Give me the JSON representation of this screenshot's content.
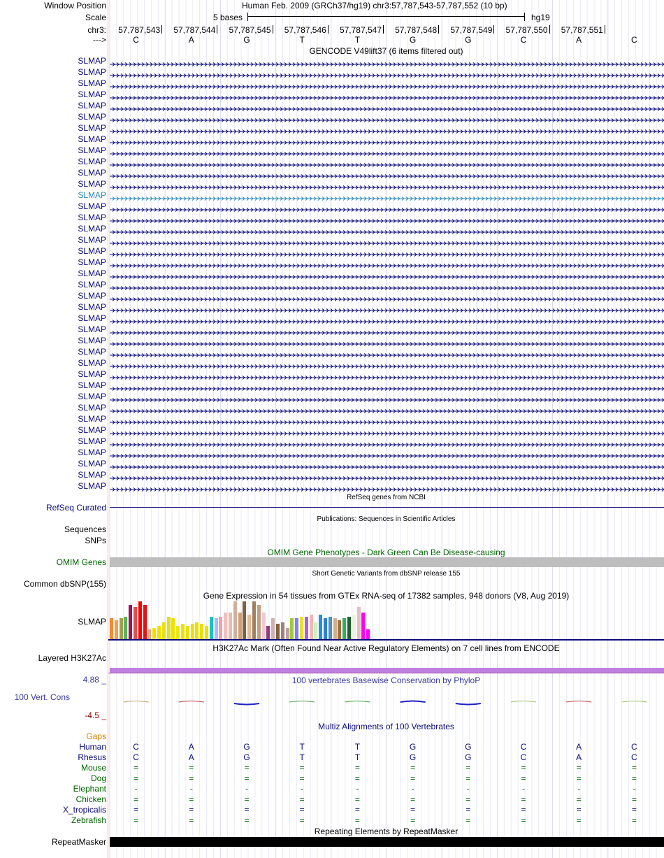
{
  "header": {
    "window_position_label": "Window Position",
    "scale_label": "Scale",
    "chrom_label": "chr3:",
    "strand_label": "--->",
    "window_text": "Human Feb. 2009 (GRCh37/hg19)   chr3:57,787,543-57,787,552 (10 bp)",
    "scale_text": "5 bases",
    "assembly": "hg19",
    "coordinates": [
      "57,787,543",
      "57,787,544",
      "57,787,545",
      "57,787,546",
      "57,787,547",
      "57,787,548",
      "57,787,549",
      "57,787,550",
      "57,787,551"
    ],
    "bases": [
      "C",
      "A",
      "G",
      "T",
      "T",
      "G",
      "G",
      "C",
      "A",
      "C"
    ]
  },
  "gencode": {
    "title": "GENCODE V49lift37 (6 items filtered out)",
    "gene_name": "SLMAP",
    "row_count": 39,
    "highlight_row": 12,
    "color": "#0c0c78",
    "highlight_color": "#2a8ab8"
  },
  "refseq": {
    "label": "RefSeq Curated",
    "title": "RefSeq genes from NCBI"
  },
  "pubs": {
    "label_line1": "Sequences",
    "label_line2": "SNPs",
    "title": "Publications: Sequences in Scientific Articles"
  },
  "omim": {
    "label": "OMIM Genes",
    "title": "OMIM Gene Phenotypes - Dark Green Can Be Disease-causing",
    "color": "#006400"
  },
  "dbsnp": {
    "label": "Common dbSNP(155)",
    "title": "Short Genetic Variants from dbSNP release 155"
  },
  "gtex": {
    "label": "SLMAP",
    "title": "Gene Expression in 54 tissues from GTEx RNA-seq of 17382 samples, 948 donors (V8, Aug 2019)",
    "levels": [
      0.55,
      0.5,
      0.55,
      0.6,
      0.9,
      0.85,
      1.0,
      0.9,
      0.25,
      0.3,
      0.35,
      0.45,
      0.6,
      0.55,
      0.35,
      0.4,
      0.35,
      0.4,
      0.45,
      0.4,
      0.35,
      0.6,
      0.55,
      0.6,
      0.7,
      0.7,
      1.0,
      0.7,
      1.0,
      0.65,
      1.0,
      0.9,
      0.7,
      0.35,
      0.55,
      0.4,
      0.45,
      0.3,
      0.55,
      0.55,
      0.6,
      0.6,
      0.65,
      0.45,
      0.65,
      0.55,
      0.6,
      0.55,
      0.5,
      0.55,
      0.6,
      0.65,
      0.85,
      0.7,
      0.25
    ],
    "colors": [
      "#f08c32",
      "#f0a050",
      "#a0a050",
      "#60b060",
      "#a01060",
      "#e05050",
      "#ff0000",
      "#e81010",
      "#d8b090",
      "#f0e000",
      "#f0e000",
      "#e8e010",
      "#e0e020",
      "#f0e000",
      "#e8e810",
      "#f0e000",
      "#e8e010",
      "#f0e000",
      "#e8e010",
      "#e8e010",
      "#f0e000",
      "#20c0c0",
      "#b0b8ff",
      "#f0a0b0",
      "#f0c0c0",
      "#e0c0b0",
      "#d0b0a0",
      "#d0a070",
      "#806040",
      "#e8b898",
      "#a08060",
      "#c0a080",
      "#f0c8d8",
      "#903880",
      "#d0b0b0",
      "#806040",
      "#a08080",
      "#c0a0a0",
      "#a0c840",
      "#8080ff",
      "#e8e030",
      "#b060d0",
      "#f0b8b8",
      "#d0f0c0",
      "#2090e0",
      "#3080d0",
      "#5090c0",
      "#d0b090",
      "#a07040",
      "#30b060",
      "#206030",
      "#f0f0e0",
      "#e0c0c0",
      "#ff00ff",
      "#ff00ff"
    ]
  },
  "h3k27ac": {
    "label": "Layered H3K27Ac",
    "title": "H3K27Ac Mark (Often Found Near Active Regulatory Elements) on 7 cell lines from ENCODE"
  },
  "cons": {
    "label": "100 Vert. Cons",
    "title": "100 vertebrates Basewise Conservation by PhyloP",
    "max": "4.88 _",
    "min": "-4.5 _"
  },
  "multiz": {
    "title": "Multiz Alignments of 100 Vertebrates",
    "gaps_label": "Gaps",
    "species": [
      {
        "name": "Human",
        "color": "#0c0c78",
        "bases": [
          "C",
          "A",
          "G",
          "T",
          "T",
          "G",
          "G",
          "C",
          "A",
          "C"
        ]
      },
      {
        "name": "Rhesus",
        "color": "#0c0c78",
        "bases": [
          "C",
          "A",
          "G",
          "T",
          "T",
          "G",
          "G",
          "C",
          "A",
          "C"
        ]
      },
      {
        "name": "Mouse",
        "color": "#006400",
        "bases": [
          "=",
          "=",
          "=",
          "=",
          "=",
          "=",
          "=",
          "=",
          "=",
          "="
        ]
      },
      {
        "name": "Dog",
        "color": "#006400",
        "bases": [
          "=",
          "=",
          "=",
          "=",
          "=",
          "=",
          "=",
          "=",
          "=",
          "="
        ]
      },
      {
        "name": "Elephant",
        "color": "#006400",
        "bases": [
          "-",
          "-",
          "-",
          "-",
          "-",
          "-",
          "-",
          "-",
          "-",
          "-"
        ]
      },
      {
        "name": "Chicken",
        "color": "#006400",
        "bases": [
          "=",
          "=",
          "=",
          "=",
          "=",
          "=",
          "=",
          "=",
          "=",
          "="
        ]
      },
      {
        "name": "X_tropicalis",
        "color": "#0c0c78",
        "bases": [
          "=",
          "=",
          "=",
          "=",
          "=",
          "=",
          "=",
          "=",
          "=",
          "="
        ]
      },
      {
        "name": "Zebrafish",
        "color": "#006400",
        "bases": [
          "=",
          "=",
          "=",
          "=",
          "=",
          "=",
          "=",
          "=",
          "=",
          "="
        ]
      }
    ]
  },
  "repeatmasker": {
    "label": "RepeatMasker",
    "title": "Repeating Elements by RepeatMasker"
  }
}
